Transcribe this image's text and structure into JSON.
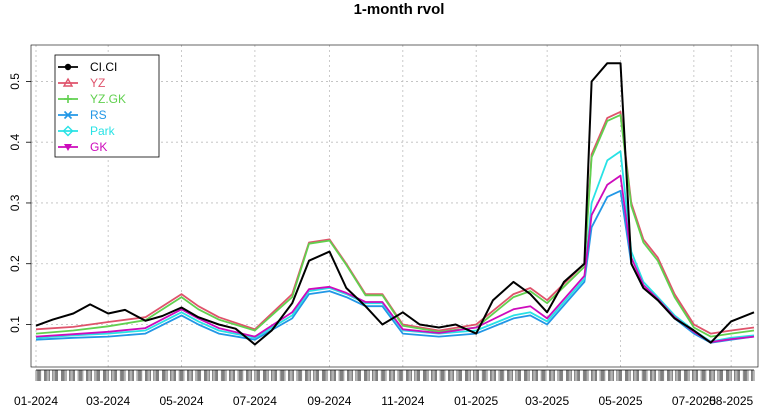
{
  "chart_data": {
    "type": "line",
    "title": "1-month rvol",
    "xlabel": "",
    "ylabel": "",
    "ylim": [
      0.03,
      0.56
    ],
    "yticks": [
      0.1,
      0.2,
      0.3,
      0.4,
      0.5
    ],
    "ytick_labels": [
      "0.1",
      "0.2",
      "0.3",
      "0.4",
      "0.5"
    ],
    "x_range": [
      "2024-01-01",
      "2025-08-20"
    ],
    "xticks": [
      "2024-01-01",
      "2024-03-01",
      "2024-05-01",
      "2024-07-01",
      "2024-09-01",
      "2024-11-01",
      "2025-01-01",
      "2025-03-01",
      "2025-05-01",
      "2025-07-01",
      "2025-08-01"
    ],
    "xtick_labels": [
      "01-2024",
      "03-2024",
      "05-2024",
      "07-2024",
      "09-2024",
      "11-2024",
      "01-2025",
      "03-2025",
      "05-2025",
      "07-2025",
      "08-2025"
    ],
    "grid": true,
    "legend_position": "top-left",
    "series": [
      {
        "name": "CI.CI",
        "color": "#000000",
        "marker": "circle",
        "points": [
          [
            "2024-01-01",
            0.098
          ],
          [
            "2024-01-15",
            0.108
          ],
          [
            "2024-02-01",
            0.118
          ],
          [
            "2024-02-15",
            0.133
          ],
          [
            "2024-03-01",
            0.118
          ],
          [
            "2024-03-15",
            0.124
          ],
          [
            "2024-04-01",
            0.106
          ],
          [
            "2024-04-15",
            0.114
          ],
          [
            "2024-05-01",
            0.128
          ],
          [
            "2024-05-15",
            0.112
          ],
          [
            "2024-06-01",
            0.1
          ],
          [
            "2024-06-15",
            0.093
          ],
          [
            "2024-07-01",
            0.067
          ],
          [
            "2024-07-15",
            0.09
          ],
          [
            "2024-08-01",
            0.135
          ],
          [
            "2024-08-15",
            0.205
          ],
          [
            "2024-09-01",
            0.22
          ],
          [
            "2024-09-15",
            0.16
          ],
          [
            "2024-10-01",
            0.13
          ],
          [
            "2024-10-15",
            0.1
          ],
          [
            "2024-11-01",
            0.12
          ],
          [
            "2024-11-15",
            0.1
          ],
          [
            "2024-12-01",
            0.095
          ],
          [
            "2024-12-15",
            0.1
          ],
          [
            "2025-01-01",
            0.085
          ],
          [
            "2025-01-15",
            0.14
          ],
          [
            "2025-02-01",
            0.17
          ],
          [
            "2025-02-15",
            0.15
          ],
          [
            "2025-03-01",
            0.12
          ],
          [
            "2025-03-15",
            0.17
          ],
          [
            "2025-04-01",
            0.2
          ],
          [
            "2025-04-07",
            0.5
          ],
          [
            "2025-04-20",
            0.53
          ],
          [
            "2025-05-01",
            0.53
          ],
          [
            "2025-05-10",
            0.2
          ],
          [
            "2025-05-20",
            0.16
          ],
          [
            "2025-06-01",
            0.14
          ],
          [
            "2025-06-15",
            0.11
          ],
          [
            "2025-07-01",
            0.09
          ],
          [
            "2025-07-15",
            0.07
          ],
          [
            "2025-08-01",
            0.105
          ],
          [
            "2025-08-20",
            0.12
          ]
        ]
      },
      {
        "name": "YZ",
        "color": "#df536b",
        "marker": "triangle-up",
        "points": [
          [
            "2024-01-01",
            0.092
          ],
          [
            "2024-02-01",
            0.096
          ],
          [
            "2024-03-01",
            0.104
          ],
          [
            "2024-04-01",
            0.112
          ],
          [
            "2024-05-01",
            0.15
          ],
          [
            "2024-05-15",
            0.13
          ],
          [
            "2024-06-01",
            0.112
          ],
          [
            "2024-07-01",
            0.092
          ],
          [
            "2024-08-01",
            0.15
          ],
          [
            "2024-08-15",
            0.235
          ],
          [
            "2024-09-01",
            0.24
          ],
          [
            "2024-09-15",
            0.2
          ],
          [
            "2024-10-01",
            0.15
          ],
          [
            "2024-10-15",
            0.15
          ],
          [
            "2024-11-01",
            0.1
          ],
          [
            "2024-12-01",
            0.09
          ],
          [
            "2025-01-01",
            0.1
          ],
          [
            "2025-02-01",
            0.15
          ],
          [
            "2025-02-15",
            0.16
          ],
          [
            "2025-03-01",
            0.14
          ],
          [
            "2025-04-01",
            0.2
          ],
          [
            "2025-04-07",
            0.38
          ],
          [
            "2025-04-20",
            0.44
          ],
          [
            "2025-05-01",
            0.45
          ],
          [
            "2025-05-10",
            0.3
          ],
          [
            "2025-05-20",
            0.24
          ],
          [
            "2025-06-01",
            0.21
          ],
          [
            "2025-06-15",
            0.15
          ],
          [
            "2025-07-01",
            0.1
          ],
          [
            "2025-07-15",
            0.085
          ],
          [
            "2025-08-01",
            0.09
          ],
          [
            "2025-08-20",
            0.095
          ]
        ]
      },
      {
        "name": "YZ.GK",
        "color": "#61d04f",
        "marker": "plus",
        "points": [
          [
            "2024-01-01",
            0.085
          ],
          [
            "2024-02-01",
            0.09
          ],
          [
            "2024-03-01",
            0.097
          ],
          [
            "2024-04-01",
            0.107
          ],
          [
            "2024-05-01",
            0.145
          ],
          [
            "2024-05-15",
            0.125
          ],
          [
            "2024-06-01",
            0.108
          ],
          [
            "2024-07-01",
            0.09
          ],
          [
            "2024-08-01",
            0.145
          ],
          [
            "2024-08-15",
            0.233
          ],
          [
            "2024-09-01",
            0.238
          ],
          [
            "2024-09-15",
            0.198
          ],
          [
            "2024-10-01",
            0.148
          ],
          [
            "2024-10-15",
            0.148
          ],
          [
            "2024-11-01",
            0.098
          ],
          [
            "2024-12-01",
            0.088
          ],
          [
            "2025-01-01",
            0.095
          ],
          [
            "2025-02-01",
            0.145
          ],
          [
            "2025-02-15",
            0.155
          ],
          [
            "2025-03-01",
            0.135
          ],
          [
            "2025-04-01",
            0.195
          ],
          [
            "2025-04-07",
            0.375
          ],
          [
            "2025-04-20",
            0.435
          ],
          [
            "2025-05-01",
            0.445
          ],
          [
            "2025-05-10",
            0.295
          ],
          [
            "2025-05-20",
            0.235
          ],
          [
            "2025-06-01",
            0.205
          ],
          [
            "2025-06-15",
            0.145
          ],
          [
            "2025-07-01",
            0.095
          ],
          [
            "2025-07-15",
            0.08
          ],
          [
            "2025-08-01",
            0.085
          ],
          [
            "2025-08-20",
            0.09
          ]
        ]
      },
      {
        "name": "RS",
        "color": "#2297e6",
        "marker": "cross",
        "points": [
          [
            "2024-01-01",
            0.075
          ],
          [
            "2024-02-01",
            0.078
          ],
          [
            "2024-03-01",
            0.08
          ],
          [
            "2024-04-01",
            0.085
          ],
          [
            "2024-05-01",
            0.115
          ],
          [
            "2024-05-15",
            0.1
          ],
          [
            "2024-06-01",
            0.085
          ],
          [
            "2024-07-01",
            0.075
          ],
          [
            "2024-08-01",
            0.11
          ],
          [
            "2024-08-15",
            0.15
          ],
          [
            "2024-09-01",
            0.155
          ],
          [
            "2024-09-15",
            0.145
          ],
          [
            "2024-10-01",
            0.13
          ],
          [
            "2024-10-15",
            0.13
          ],
          [
            "2024-11-01",
            0.085
          ],
          [
            "2024-12-01",
            0.08
          ],
          [
            "2025-01-01",
            0.085
          ],
          [
            "2025-02-01",
            0.11
          ],
          [
            "2025-02-15",
            0.115
          ],
          [
            "2025-03-01",
            0.1
          ],
          [
            "2025-04-01",
            0.17
          ],
          [
            "2025-04-07",
            0.26
          ],
          [
            "2025-04-20",
            0.31
          ],
          [
            "2025-05-01",
            0.32
          ],
          [
            "2025-05-10",
            0.2
          ],
          [
            "2025-05-20",
            0.16
          ],
          [
            "2025-06-01",
            0.14
          ],
          [
            "2025-06-15",
            0.11
          ],
          [
            "2025-07-01",
            0.085
          ],
          [
            "2025-07-15",
            0.07
          ],
          [
            "2025-08-01",
            0.075
          ],
          [
            "2025-08-20",
            0.08
          ]
        ]
      },
      {
        "name": "Park",
        "color": "#28e2e5",
        "marker": "diamond",
        "points": [
          [
            "2024-01-01",
            0.078
          ],
          [
            "2024-02-01",
            0.082
          ],
          [
            "2024-03-01",
            0.085
          ],
          [
            "2024-04-01",
            0.09
          ],
          [
            "2024-05-01",
            0.12
          ],
          [
            "2024-05-15",
            0.105
          ],
          [
            "2024-06-01",
            0.09
          ],
          [
            "2024-07-01",
            0.078
          ],
          [
            "2024-08-01",
            0.115
          ],
          [
            "2024-08-15",
            0.155
          ],
          [
            "2024-09-01",
            0.16
          ],
          [
            "2024-09-15",
            0.15
          ],
          [
            "2024-10-01",
            0.135
          ],
          [
            "2024-10-15",
            0.135
          ],
          [
            "2024-11-01",
            0.09
          ],
          [
            "2024-12-01",
            0.085
          ],
          [
            "2025-01-01",
            0.09
          ],
          [
            "2025-02-01",
            0.115
          ],
          [
            "2025-02-15",
            0.12
          ],
          [
            "2025-03-01",
            0.105
          ],
          [
            "2025-04-01",
            0.175
          ],
          [
            "2025-04-07",
            0.3
          ],
          [
            "2025-04-20",
            0.37
          ],
          [
            "2025-05-01",
            0.385
          ],
          [
            "2025-05-10",
            0.22
          ],
          [
            "2025-05-20",
            0.17
          ],
          [
            "2025-06-01",
            0.145
          ],
          [
            "2025-06-15",
            0.115
          ],
          [
            "2025-07-01",
            0.09
          ],
          [
            "2025-07-15",
            0.072
          ],
          [
            "2025-08-01",
            0.078
          ],
          [
            "2025-08-20",
            0.082
          ]
        ]
      },
      {
        "name": "GK",
        "color": "#cd0bbc",
        "marker": "triangle-down",
        "points": [
          [
            "2024-01-01",
            0.08
          ],
          [
            "2024-02-01",
            0.084
          ],
          [
            "2024-03-01",
            0.088
          ],
          [
            "2024-04-01",
            0.094
          ],
          [
            "2024-05-01",
            0.125
          ],
          [
            "2024-05-15",
            0.11
          ],
          [
            "2024-06-01",
            0.094
          ],
          [
            "2024-07-01",
            0.08
          ],
          [
            "2024-08-01",
            0.12
          ],
          [
            "2024-08-15",
            0.158
          ],
          [
            "2024-09-01",
            0.162
          ],
          [
            "2024-09-15",
            0.152
          ],
          [
            "2024-10-01",
            0.137
          ],
          [
            "2024-10-15",
            0.137
          ],
          [
            "2024-11-01",
            0.092
          ],
          [
            "2024-12-01",
            0.086
          ],
          [
            "2025-01-01",
            0.095
          ],
          [
            "2025-02-01",
            0.125
          ],
          [
            "2025-02-15",
            0.13
          ],
          [
            "2025-03-01",
            0.11
          ],
          [
            "2025-04-01",
            0.18
          ],
          [
            "2025-04-07",
            0.28
          ],
          [
            "2025-04-20",
            0.33
          ],
          [
            "2025-05-01",
            0.345
          ],
          [
            "2025-05-10",
            0.21
          ],
          [
            "2025-05-20",
            0.165
          ],
          [
            "2025-06-01",
            0.142
          ],
          [
            "2025-06-15",
            0.112
          ],
          [
            "2025-07-01",
            0.088
          ],
          [
            "2025-07-15",
            0.071
          ],
          [
            "2025-08-01",
            0.076
          ],
          [
            "2025-08-20",
            0.08
          ]
        ]
      }
    ]
  }
}
